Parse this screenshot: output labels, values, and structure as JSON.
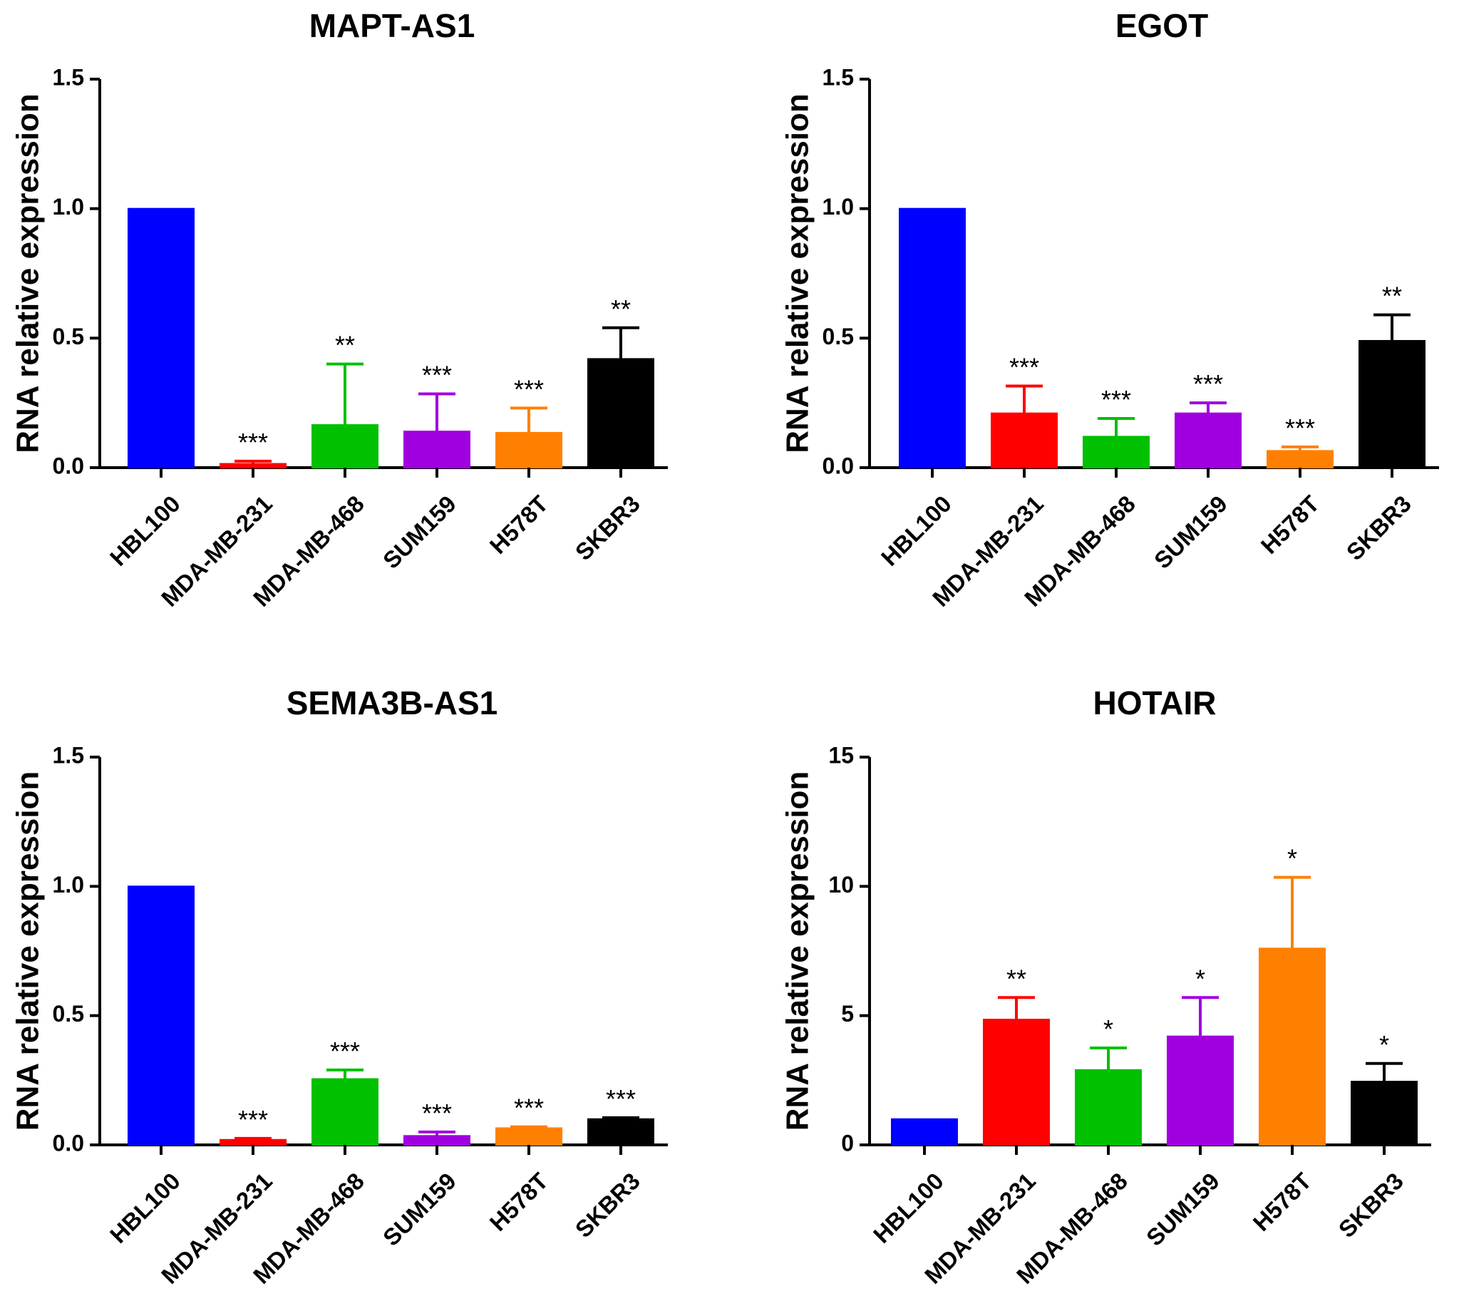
{
  "chart_data": [
    {
      "type": "bar",
      "title": "MAPT-AS1",
      "xlabel": "",
      "ylabel": "RNA relative expression",
      "ylim": [
        0,
        1.5
      ],
      "yticks": [
        "0.0",
        "0.5",
        "1.0",
        "1.5"
      ],
      "categories": [
        "HBL100",
        "MDA-MB-231",
        "MDA-MB-468",
        "SUM159",
        "H578T",
        "SKBR3"
      ],
      "values": [
        1.0,
        0.015,
        0.165,
        0.14,
        0.135,
        0.42
      ],
      "errors": [
        0,
        0.01,
        0.235,
        0.145,
        0.095,
        0.12
      ],
      "significance": [
        "",
        "***",
        "**",
        "***",
        "***",
        "**"
      ],
      "colors": [
        "#0000ff",
        "#ff0000",
        "#00c000",
        "#a000e0",
        "#ff8000",
        "#000000"
      ]
    },
    {
      "type": "bar",
      "title": "EGOT",
      "xlabel": "",
      "ylabel": "RNA relative expression",
      "ylim": [
        0,
        1.5
      ],
      "yticks": [
        "0.0",
        "0.5",
        "1.0",
        "1.5"
      ],
      "categories": [
        "HBL100",
        "MDA-MB-231",
        "MDA-MB-468",
        "SUM159",
        "H578T",
        "SKBR3"
      ],
      "values": [
        1.0,
        0.21,
        0.12,
        0.21,
        0.065,
        0.49
      ],
      "errors": [
        0,
        0.105,
        0.07,
        0.04,
        0.015,
        0.1
      ],
      "significance": [
        "",
        "***",
        "***",
        "***",
        "***",
        "**"
      ],
      "colors": [
        "#0000ff",
        "#ff0000",
        "#00c000",
        "#a000e0",
        "#ff8000",
        "#000000"
      ]
    },
    {
      "type": "bar",
      "title": "SEMA3B-AS1",
      "xlabel": "",
      "ylabel": "RNA relative expression",
      "ylim": [
        0,
        1.5
      ],
      "yticks": [
        "0.0",
        "0.5",
        "1.0",
        "1.5"
      ],
      "categories": [
        "HBL100",
        "MDA-MB-231",
        "MDA-MB-468",
        "SUM159",
        "H578T",
        "SKBR3"
      ],
      "values": [
        1.0,
        0.02,
        0.255,
        0.035,
        0.065,
        0.1
      ],
      "errors": [
        0,
        0.005,
        0.035,
        0.015,
        0.005,
        0.005
      ],
      "significance": [
        "",
        "***",
        "***",
        "***",
        "***",
        "***"
      ],
      "colors": [
        "#0000ff",
        "#ff0000",
        "#00c000",
        "#a000e0",
        "#ff8000",
        "#000000"
      ]
    },
    {
      "type": "bar",
      "title": "HOTAIR",
      "xlabel": "",
      "ylabel": "RNA relative expression",
      "ylim": [
        0,
        15
      ],
      "yticks": [
        "0",
        "5",
        "10",
        "15"
      ],
      "categories": [
        "HBL100",
        "MDA-MB-231",
        "MDA-MB-468",
        "SUM159",
        "H578T",
        "SKBR3"
      ],
      "values": [
        1.0,
        4.85,
        2.9,
        4.2,
        7.6,
        2.45
      ],
      "errors": [
        0,
        0.85,
        0.85,
        1.5,
        2.75,
        0.7
      ],
      "significance": [
        "",
        "**",
        "*",
        "*",
        "*",
        "*"
      ],
      "colors": [
        "#0000ff",
        "#ff0000",
        "#00c000",
        "#a000e0",
        "#ff8000",
        "#000000"
      ]
    }
  ]
}
